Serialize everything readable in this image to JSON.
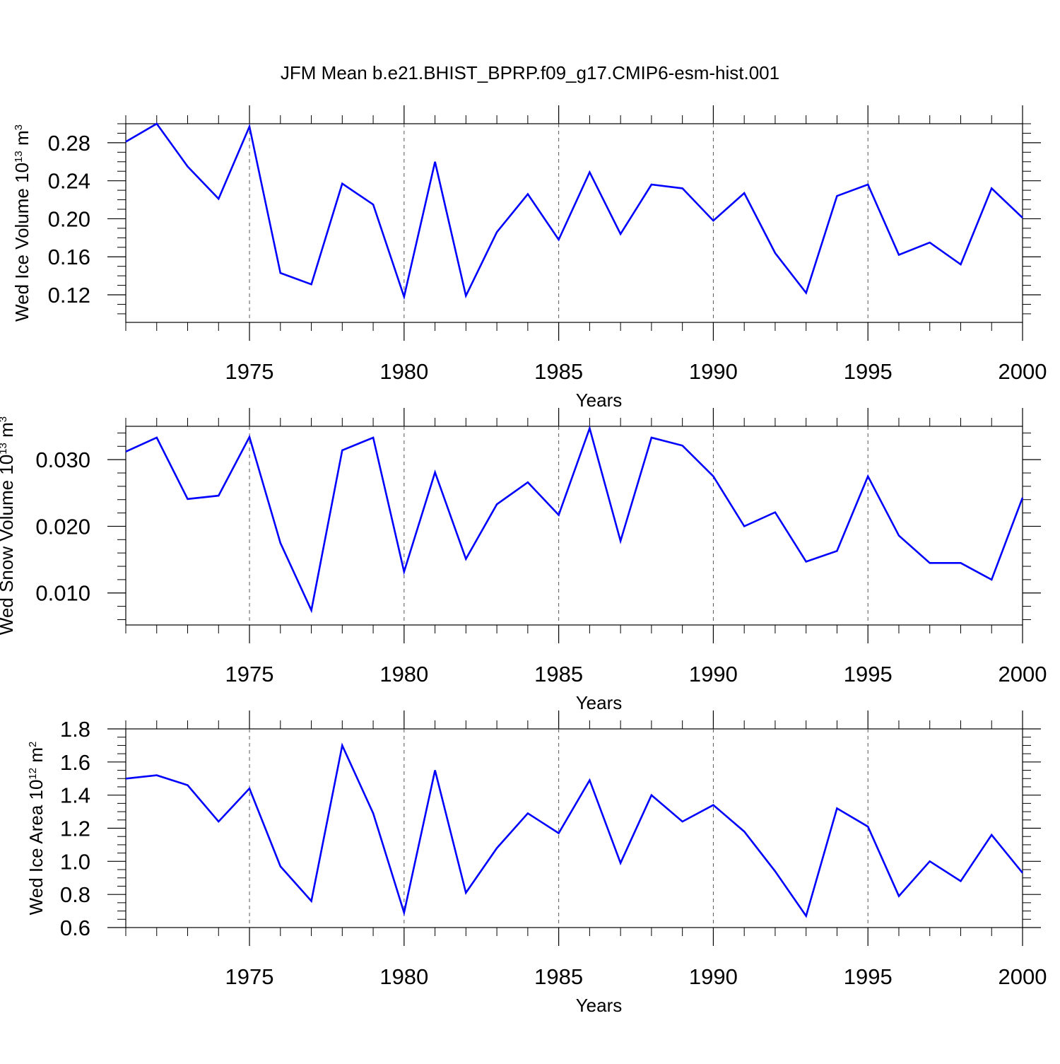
{
  "chart_data": {
    "type": "line",
    "title": "JFM Mean b.e21.BHIST_BPRP.f09_g17.CMIP6-esm-hist.001",
    "line_color": "#0000ff",
    "x": [
      1971,
      1972,
      1973,
      1974,
      1975,
      1976,
      1977,
      1978,
      1979,
      1980,
      1981,
      1982,
      1983,
      1984,
      1985,
      1986,
      1987,
      1988,
      1989,
      1990,
      1991,
      1992,
      1993,
      1994,
      1995,
      1996,
      1997,
      1998,
      1999,
      2000
    ],
    "xlim": [
      1971,
      2000
    ],
    "xticks": [
      1975,
      1980,
      1985,
      1990,
      1995,
      2000
    ],
    "xtick_labels": [
      "1975",
      "1980",
      "1985",
      "1990",
      "1995",
      "2000"
    ],
    "panels": [
      {
        "name": "ice-volume",
        "ylabel": "Wed Ice Volume 10",
        "ylabel_sup": "13",
        "ylabel_unit": " m",
        "ylabel_unit_sup": "3",
        "xlabel": "Years",
        "ylim": [
          0.091,
          0.3
        ],
        "yticks": [
          0.12,
          0.16,
          0.2,
          0.24,
          0.28
        ],
        "ytick_labels": [
          "0.12",
          "0.16",
          "0.20",
          "0.24",
          "0.28"
        ],
        "yminor_step": 0.01,
        "values": [
          0.281,
          0.3,
          0.255,
          0.221,
          0.297,
          0.143,
          0.131,
          0.237,
          0.215,
          0.118,
          0.26,
          0.119,
          0.186,
          0.226,
          0.178,
          0.249,
          0.184,
          0.236,
          0.232,
          0.198,
          0.227,
          0.164,
          0.122,
          0.224,
          0.236,
          0.162,
          0.175,
          0.152,
          0.232,
          0.201
        ]
      },
      {
        "name": "snow-volume",
        "ylabel": "Wed Snow Volume 10",
        "ylabel_sup": "13",
        "ylabel_unit": " m",
        "ylabel_unit_sup": "3",
        "xlabel": "Years",
        "ylim": [
          0.0052,
          0.035
        ],
        "yticks": [
          0.01,
          0.02,
          0.03
        ],
        "ytick_labels": [
          "0.010",
          "0.020",
          "0.030"
        ],
        "yminor_step": 0.002,
        "values": [
          0.0312,
          0.0333,
          0.0241,
          0.0246,
          0.0334,
          0.0175,
          0.0074,
          0.0314,
          0.0333,
          0.0132,
          0.0281,
          0.0151,
          0.0233,
          0.0266,
          0.0217,
          0.0347,
          0.0178,
          0.0333,
          0.0321,
          0.0275,
          0.02,
          0.0221,
          0.0147,
          0.0163,
          0.0275,
          0.0186,
          0.0145,
          0.0145,
          0.012,
          0.0243
        ]
      },
      {
        "name": "ice-area",
        "ylabel": "Wed Ice Area 10",
        "ylabel_sup": "12",
        "ylabel_unit": " m",
        "ylabel_unit_sup": "2",
        "xlabel": "Years",
        "ylim": [
          0.6,
          1.8
        ],
        "yticks": [
          0.6,
          0.8,
          1.0,
          1.2,
          1.4,
          1.6,
          1.8
        ],
        "ytick_labels": [
          "0.6",
          "0.8",
          "1.0",
          "1.2",
          "1.4",
          "1.6",
          "1.8"
        ],
        "yminor_step": 0.05,
        "values": [
          1.5,
          1.52,
          1.46,
          1.24,
          1.44,
          0.97,
          0.76,
          1.7,
          1.29,
          0.69,
          1.55,
          0.81,
          1.08,
          1.29,
          1.17,
          1.49,
          0.99,
          1.4,
          1.24,
          1.34,
          1.18,
          0.94,
          0.67,
          1.32,
          1.21,
          0.79,
          1.0,
          0.88,
          1.16,
          0.93
        ]
      }
    ]
  }
}
